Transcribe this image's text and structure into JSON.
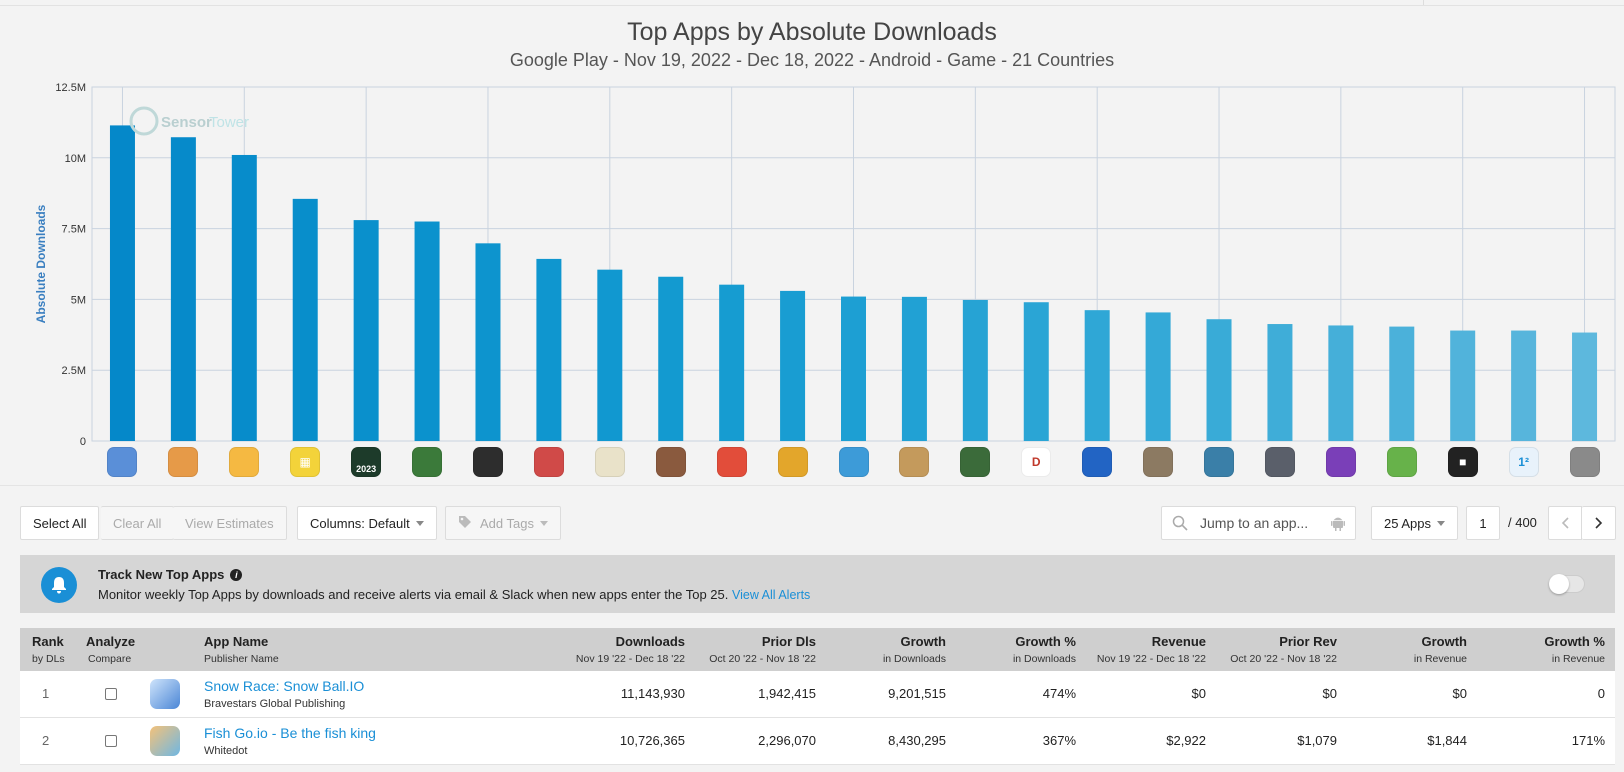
{
  "chart_data": {
    "type": "bar",
    "title": "Top Apps by Absolute Downloads",
    "subtitle": "Google Play - Nov 19, 2022 - Dec 18, 2022 - Android - Game - 21 Countries",
    "xlabel": "",
    "ylabel": "Absolute Downloads",
    "ylim": [
      0,
      12500000
    ],
    "ytick_values": [
      0,
      2500000,
      5000000,
      7500000,
      10000000,
      12500000
    ],
    "ytick_labels": [
      "0",
      "2.5M",
      "5M",
      "7.5M",
      "10M",
      "12.5M"
    ],
    "grid": true,
    "values": [
      11143930,
      10726365,
      10100000,
      8550000,
      7800000,
      7750000,
      6980000,
      6430000,
      6050000,
      5800000,
      5520000,
      5300000,
      5100000,
      5090000,
      4980000,
      4900000,
      4620000,
      4540000,
      4300000,
      4130000,
      4080000,
      4040000,
      3900000,
      3900000,
      3830000
    ],
    "bar_colors": [
      "#0588c9",
      "#068aca",
      "#078ccb",
      "#088ecb",
      "#0a90cc",
      "#0b92cd",
      "#0d94ce",
      "#0f96cf",
      "#1198d0",
      "#139ad0",
      "#169cd1",
      "#199dd2",
      "#1d9fd3",
      "#21a1d4",
      "#26a3d4",
      "#2aa5d5",
      "#2fa7d6",
      "#34a9d7",
      "#39abd7",
      "#3fadd8",
      "#45afd9",
      "#4bb1da",
      "#51b3db",
      "#57b5dc",
      "#5db8dd"
    ],
    "watermark_part1": "Sensor",
    "watermark_part2": "Tower"
  },
  "app_icons": [
    {
      "name": "snow-race-icon",
      "color": "#5a8fd8",
      "glyph": ""
    },
    {
      "name": "fish-go-icon",
      "color": "#e69a48",
      "glyph": ""
    },
    {
      "name": "subway-surfers-icon",
      "color": "#f5b942",
      "glyph": ""
    },
    {
      "name": "ludo-icon",
      "color": "#f3d33a",
      "glyph": "▦"
    },
    {
      "name": "dls-2023-icon",
      "color": "#1d3b2a",
      "glyph": "2023"
    },
    {
      "name": "bike-race-icon",
      "color": "#3b7a3a",
      "glyph": ""
    },
    {
      "name": "shooter-icon",
      "color": "#2d2d2d",
      "glyph": ""
    },
    {
      "name": "sonic-icon",
      "color": "#d04a48",
      "glyph": ""
    },
    {
      "name": "world-cup-icon",
      "color": "#e9e2c9",
      "glyph": ""
    },
    {
      "name": "block-craft-icon",
      "color": "#8a5a3e",
      "glyph": ""
    },
    {
      "name": "candy-icon",
      "color": "#e24d3a",
      "glyph": ""
    },
    {
      "name": "temple-run-icon",
      "color": "#e3a62b",
      "glyph": ""
    },
    {
      "name": "puzzle-icon",
      "color": "#3d9bd8",
      "glyph": ""
    },
    {
      "name": "archer-icon",
      "color": "#c49a5c",
      "glyph": ""
    },
    {
      "name": "soccer-icon",
      "color": "#3b6b3a",
      "glyph": ""
    },
    {
      "name": "dream11-icon",
      "color": "#ffffff",
      "glyph": "D"
    },
    {
      "name": "ball-run-icon",
      "color": "#2264c4",
      "glyph": ""
    },
    {
      "name": "battle-icon",
      "color": "#8c7a62",
      "glyph": ""
    },
    {
      "name": "car-racing-icon",
      "color": "#3a7fa8",
      "glyph": ""
    },
    {
      "name": "tank-icon",
      "color": "#5a5f6a",
      "glyph": ""
    },
    {
      "name": "bubble-shooter-icon",
      "color": "#7a3fb8",
      "glyph": ""
    },
    {
      "name": "hill-climb-icon",
      "color": "#67b24a",
      "glyph": ""
    },
    {
      "name": "roblox-icon",
      "color": "#222222",
      "glyph": "■"
    },
    {
      "name": "math-icon",
      "color": "#e8f2fb",
      "glyph": "1²"
    },
    {
      "name": "talking-tom-icon",
      "color": "#8a8a8a",
      "glyph": ""
    }
  ],
  "toolbar": {
    "select_all": "Select All",
    "clear_all": "Clear All",
    "view_estimates": "View Estimates",
    "columns": "Columns: Default",
    "add_tags": "Add Tags",
    "search_placeholder": "Jump to an app...",
    "apps_per_page": "25 Apps",
    "page_number": "1",
    "page_total": "/ 400"
  },
  "alert": {
    "title": "Track New Top Apps",
    "text": "Monitor weekly Top Apps by downloads and receive alerts via email & Slack when new apps enter the Top 25.",
    "link": "View All Alerts"
  },
  "table": {
    "headers": {
      "rank": "Rank",
      "rank_sub": "by DLs",
      "analyze": "Analyze",
      "analyze_sub": "Compare",
      "app_name": "App Name",
      "app_name_sub": "Publisher Name",
      "downloads": "Downloads",
      "downloads_sub": "Nov 19 '22 - Dec 18 '22",
      "prior_dls": "Prior Dls",
      "prior_dls_sub": "Oct 20 '22 - Nov 18 '22",
      "growth": "Growth",
      "growth_sub": "in Downloads",
      "growth_pct": "Growth %",
      "growth_pct_sub": "in Downloads",
      "revenue": "Revenue",
      "revenue_sub": "Nov 19 '22 - Dec 18 '22",
      "prior_rev": "Prior Rev",
      "prior_rev_sub": "Oct 20 '22 - Nov 18 '22",
      "growth_rev": "Growth",
      "growth_rev_sub": "in Revenue",
      "growth_rev_pct": "Growth %",
      "growth_rev_pct_sub": "in Revenue"
    },
    "rows": [
      {
        "rank": "1",
        "app": "Snow Race: Snow Ball.IO",
        "publisher": "Bravestars Global Publishing",
        "downloads": "11,143,930",
        "prior_dls": "1,942,415",
        "growth": "9,201,515",
        "growth_pct": "474%",
        "revenue": "$0",
        "prior_rev": "$0",
        "growth_rev": "$0",
        "growth_rev_pct": "0"
      },
      {
        "rank": "2",
        "app": "Fish Go.io - Be the fish king",
        "publisher": "Whitedot",
        "downloads": "10,726,365",
        "prior_dls": "2,296,070",
        "growth": "8,430,295",
        "growth_pct": "367%",
        "revenue": "$2,922",
        "prior_rev": "$1,079",
        "growth_rev": "$1,844",
        "growth_rev_pct": "171%"
      }
    ]
  }
}
